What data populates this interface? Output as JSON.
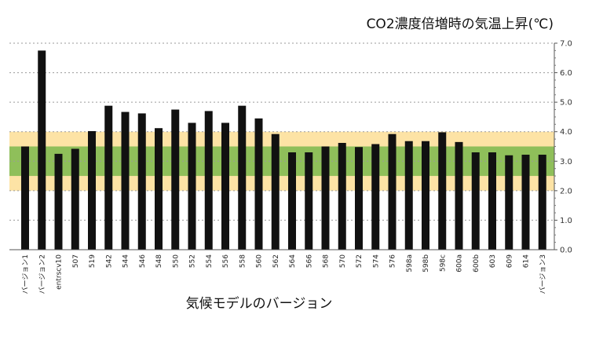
{
  "chart_data": {
    "type": "bar",
    "title": "CO2濃度倍増時の気温上昇(℃)",
    "xlabel": "気候モデルのバージョン",
    "ylabel": "",
    "ylim": [
      0,
      7
    ],
    "yticks": [
      "0.0",
      "1.0",
      "2.0",
      "3.0",
      "4.0",
      "5.0",
      "6.0",
      "7.0"
    ],
    "y_axis_side": "right",
    "grid": "dotted horizontal",
    "categories": [
      "バージョン1",
      "バージョン2",
      "entrscv10",
      "507",
      "519",
      "542",
      "544",
      "546",
      "548",
      "550",
      "552",
      "554",
      "556",
      "558",
      "560",
      "562",
      "564",
      "566",
      "568",
      "570",
      "572",
      "574",
      "576",
      "598a",
      "598b",
      "598c",
      "600a",
      "600b",
      "603",
      "609",
      "614",
      "バージョン3"
    ],
    "values": [
      3.5,
      6.75,
      3.25,
      3.42,
      4.02,
      4.88,
      4.67,
      4.62,
      4.12,
      4.75,
      4.3,
      4.7,
      4.3,
      4.88,
      4.45,
      3.92,
      3.3,
      3.3,
      3.5,
      3.62,
      3.48,
      3.58,
      3.92,
      3.68,
      3.68,
      3.98,
      3.65,
      3.3,
      3.3,
      3.2,
      3.22,
      3.22
    ],
    "bands": [
      {
        "from": 2.0,
        "to": 4.0,
        "color": "#fde3a5"
      },
      {
        "from": 2.5,
        "to": 3.5,
        "color": "#8fbf5a"
      }
    ],
    "bar_color": "#111111"
  }
}
